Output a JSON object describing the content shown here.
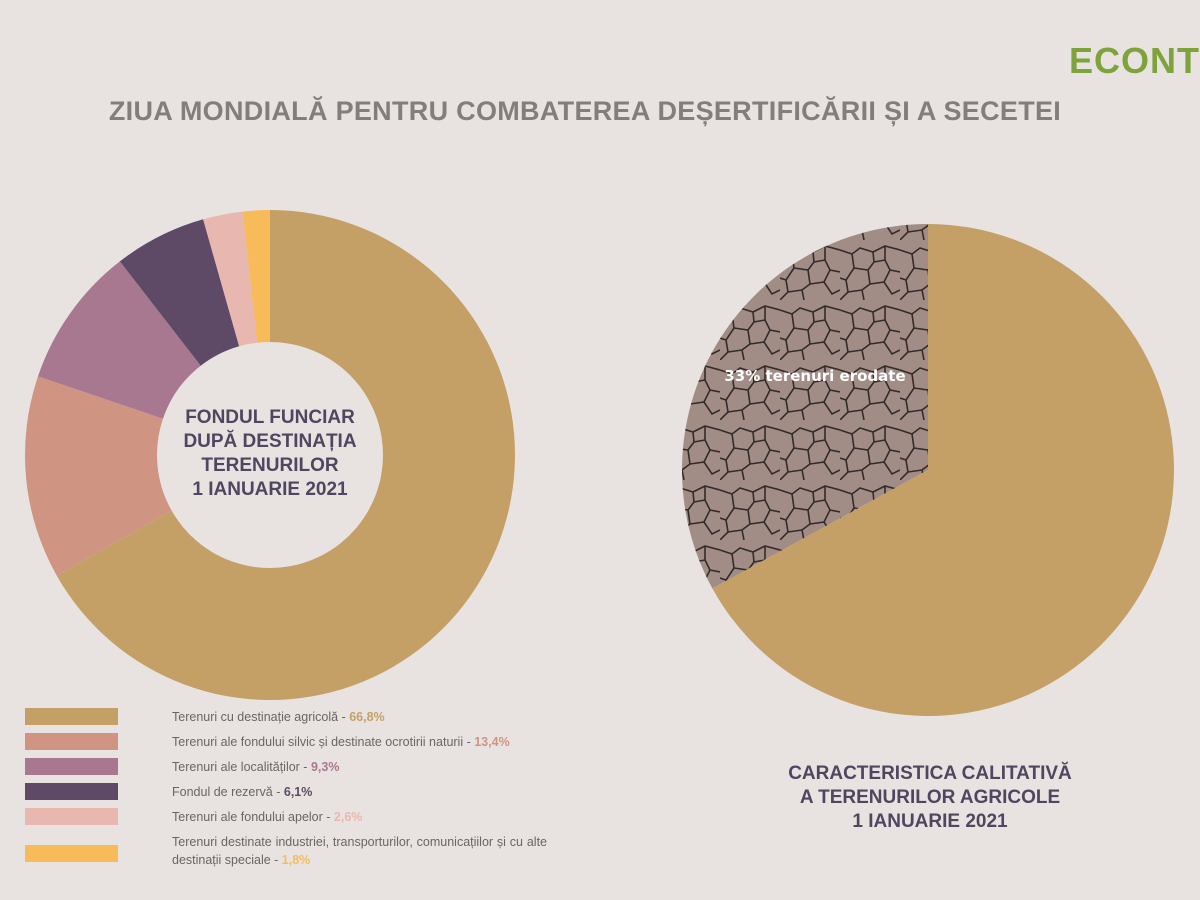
{
  "title": "ZIUA MONDIALĂ PENTRU COMBATEREA DEȘERTIFICĂRII ȘI A SECETEI",
  "logo": "ECONT",
  "chart_data": [
    {
      "type": "donut",
      "center_text": [
        "FONDUL FUNCIAR",
        "DUPĂ DESTINAȚIA",
        "TERENURILOR",
        "1 IANUARIE 2021"
      ],
      "categories": [
        "Terenuri cu destinație agricolă -",
        "Terenuri ale fondului silvic și destinate ocrotirii naturii -",
        "Terenuri ale localităților -",
        "Fondul de rezervă -",
        "Terenuri ale fondului apelor -",
        "Terenuri destinate industriei, transporturilor, comunicațiilor și cu alte destinații speciale -"
      ],
      "values": [
        66.8,
        13.4,
        9.3,
        6.1,
        2.6,
        1.8
      ],
      "value_labels": [
        "66,8%",
        "13,4%",
        "9,3%",
        "6,1%",
        "2,6%",
        "1,8%"
      ],
      "colors": [
        "#c4a067",
        "#d09482",
        "#a87890",
        "#5e4a66",
        "#e8b8b0",
        "#f8bb5a"
      ]
    },
    {
      "type": "pie",
      "title": [
        "CARACTERISTICA CALITATIVĂ",
        "A TERENURILOR AGRICOLE",
        "1 IANUARIE 2021"
      ],
      "categories": [
        "terenuri erodate",
        null
      ],
      "values": [
        33,
        67
      ],
      "value_labels": [
        "33%",
        null
      ],
      "colors": [
        "#a28d86",
        "#c4a067"
      ]
    }
  ]
}
